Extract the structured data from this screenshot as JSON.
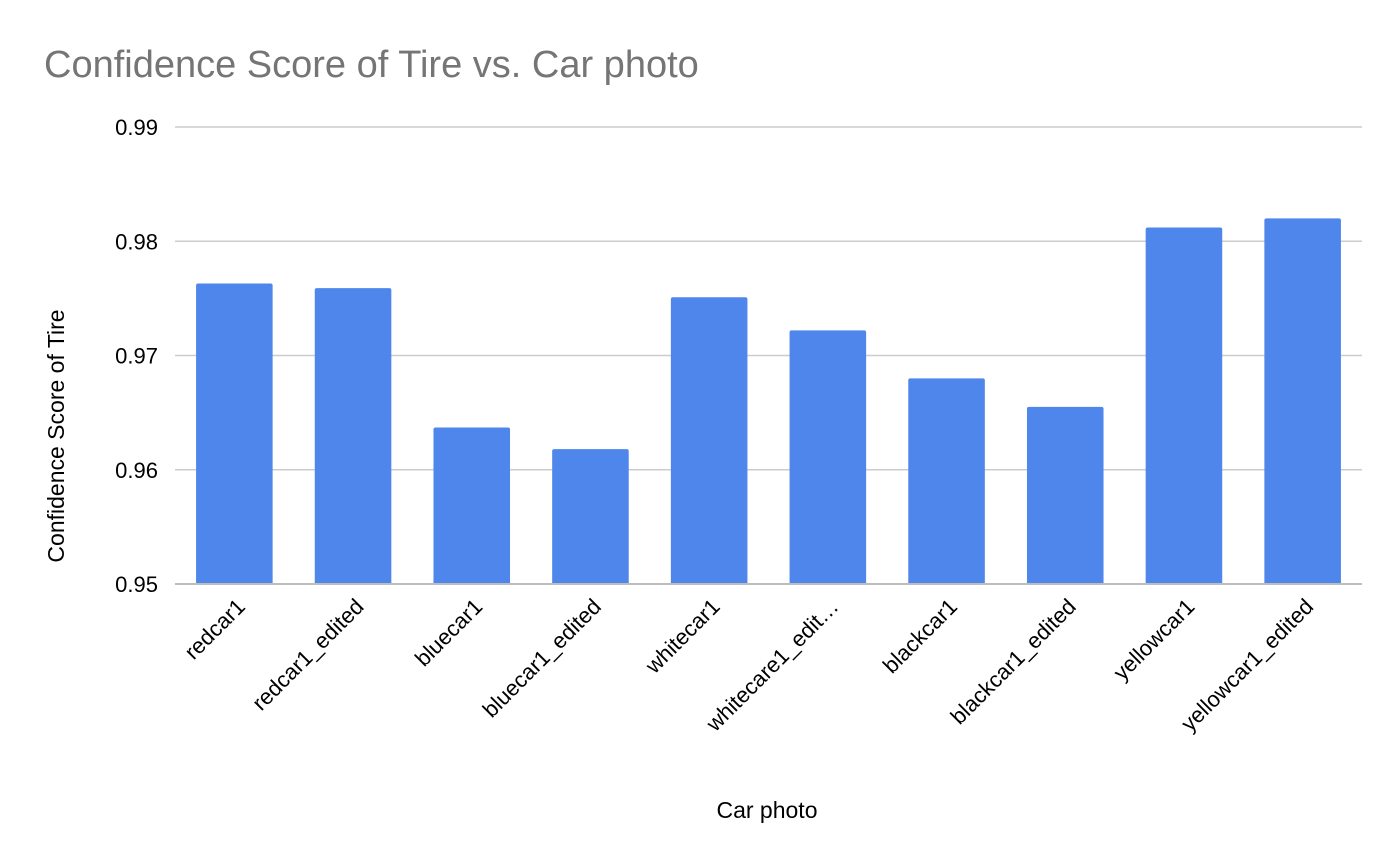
{
  "chart_data": {
    "type": "bar",
    "title": "Confidence Score of Tire vs. Car photo",
    "xlabel": "Car photo",
    "ylabel": "Confidence Score of Tire",
    "categories": [
      "redcar1",
      "redcar1_edited",
      "bluecar1",
      "bluecar1_edited",
      "whitecar1",
      "whitecare1_edit…",
      "blackcar1",
      "blackcar1_edited",
      "yellowcar1",
      "yellowcar1_edited"
    ],
    "values": [
      0.9763,
      0.9759,
      0.9637,
      0.9618,
      0.9751,
      0.9722,
      0.968,
      0.9655,
      0.9812,
      0.982
    ],
    "ylim": [
      0.95,
      0.99
    ],
    "yticks": [
      "0.95",
      "0.96",
      "0.97",
      "0.98",
      "0.99"
    ],
    "grid": true,
    "legend": "none",
    "colors": {
      "bar": "#4f86ec",
      "title": "#757575",
      "grid": "#cccccc"
    }
  }
}
